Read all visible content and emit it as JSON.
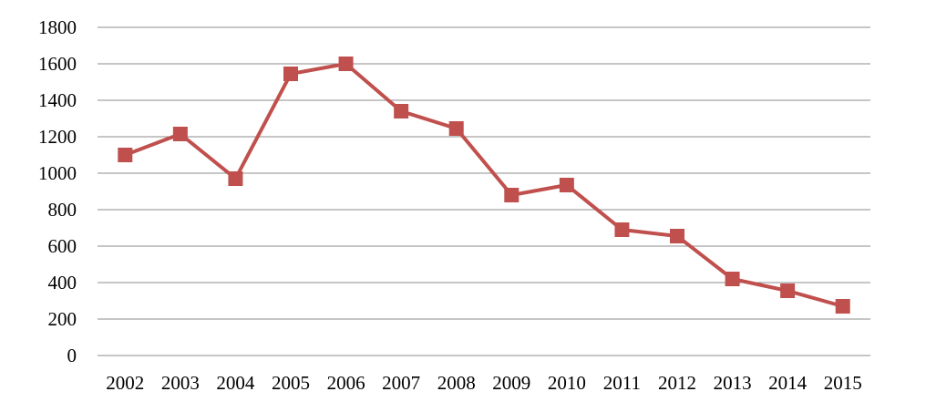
{
  "chart_data": {
    "type": "line",
    "title": "",
    "xlabel": "",
    "ylabel": "",
    "categories": [
      "2002",
      "2003",
      "2004",
      "2005",
      "2006",
      "2007",
      "2008",
      "2009",
      "2010",
      "2011",
      "2012",
      "2013",
      "2014",
      "2015"
    ],
    "series": [
      {
        "values": [
          1100,
          1215,
          970,
          1545,
          1600,
          1340,
          1245,
          880,
          935,
          690,
          655,
          420,
          355,
          270
        ],
        "color": "#c0504d",
        "marker": "square"
      }
    ],
    "ylim": [
      0,
      1800
    ],
    "yticks": [
      0,
      200,
      400,
      600,
      800,
      1000,
      1200,
      1400,
      1600,
      1800
    ],
    "grid": true,
    "legend": "none"
  }
}
